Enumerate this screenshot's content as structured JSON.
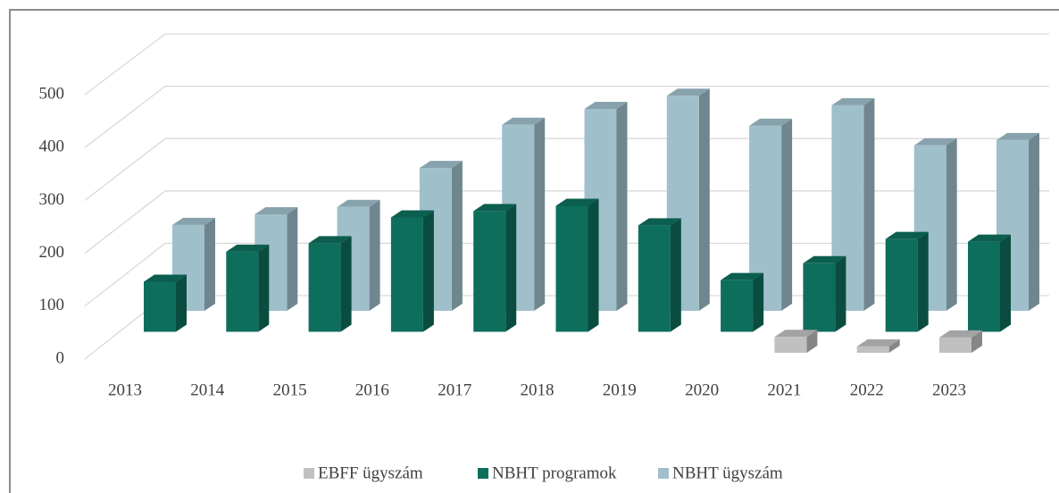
{
  "chart_data": {
    "type": "bar3d",
    "categories": [
      "2013",
      "2014",
      "2015",
      "2016",
      "2017",
      "2018",
      "2019",
      "2020",
      "2021",
      "2022",
      "2023"
    ],
    "series": [
      {
        "name": "EBFF ügyszám",
        "color": "#c0c0c0",
        "values": [
          null,
          null,
          null,
          null,
          null,
          null,
          null,
          null,
          30,
          12,
          29
        ]
      },
      {
        "name": "NBHT programok",
        "color": "#0e6e5c",
        "values": [
          95,
          152,
          168,
          217,
          229,
          239,
          202,
          98,
          130,
          176,
          171
        ]
      },
      {
        "name": "NBHT ügyszám",
        "color": "#9fbfcb",
        "values": [
          163,
          183,
          197,
          271,
          353,
          383,
          408,
          351,
          390,
          314,
          324
        ]
      }
    ],
    "ylim": [
      0,
      500
    ],
    "yticks": [
      0,
      100,
      200,
      300,
      400,
      500
    ],
    "grid": true,
    "legend": "bottom"
  }
}
